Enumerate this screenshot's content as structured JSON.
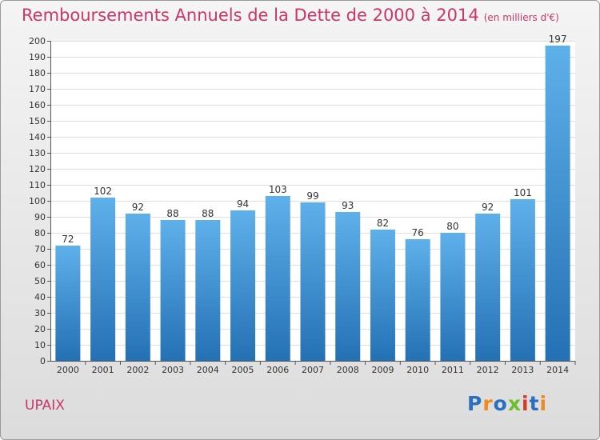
{
  "title": "Remboursements Annuels de la Dette de 2000 à 2014",
  "subtitle": "(en milliers d'€)",
  "commune": "UPAIX",
  "logo": {
    "text": "Proxiti",
    "letter_colors": [
      "#2a6fc0",
      "#f08a1c",
      "#2a6fc0",
      "#6cbf2a",
      "#d83a2a",
      "#2a6fc0",
      "#f08a1c"
    ]
  },
  "colors": {
    "title": "#c8366a",
    "bar_top": "#5eb0ea",
    "bar_bottom": "#2470b4"
  },
  "chart_data": {
    "type": "bar",
    "categories": [
      "2000",
      "2001",
      "2002",
      "2003",
      "2004",
      "2005",
      "2006",
      "2007",
      "2008",
      "2009",
      "2010",
      "2011",
      "2012",
      "2013",
      "2014"
    ],
    "values": [
      72,
      102,
      92,
      88,
      88,
      94,
      103,
      99,
      93,
      82,
      76,
      80,
      92,
      101,
      197
    ],
    "ylim": [
      0,
      200
    ],
    "ytick_step": 10,
    "grid": true,
    "title": "Remboursements Annuels de la Dette de 2000 à 2014",
    "xlabel": "",
    "ylabel": ""
  }
}
